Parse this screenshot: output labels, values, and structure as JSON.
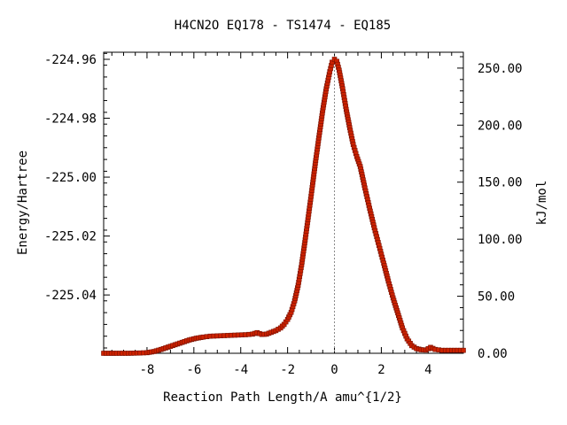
{
  "chart_data": {
    "type": "line",
    "title": "H4CN2O   EQ178 - TS1474 - EQ185",
    "xlabel": "Reaction Path Length/A amu^{1/2}",
    "ylabel": "Energy/Hartree",
    "y2label": "kJ/mol",
    "xlim": [
      -9.85,
      5.5
    ],
    "ylim": [
      -225.0598,
      -224.9576
    ],
    "y2lim": [
      0,
      263.9
    ],
    "x_ticks": [
      -8,
      -6,
      -4,
      -2,
      0,
      2,
      4
    ],
    "x_tick_labels": [
      "-8",
      "-6",
      "-4",
      "-2",
      "0",
      "2",
      "4"
    ],
    "y_ticks": [
      -224.96,
      -224.98,
      -225.0,
      -225.02,
      -225.04
    ],
    "y_tick_labels": [
      "-224.96",
      "-224.98",
      "-225.00",
      "-225.02",
      "-225.04"
    ],
    "y2_ticks": [
      0,
      50,
      100,
      150,
      200,
      250
    ],
    "y2_tick_labels": [
      "0.00",
      "50.00",
      "100.00",
      "150.00",
      "200.00",
      "250.00"
    ],
    "ts_marker_x": 0,
    "grid": false,
    "colors": {
      "line": "#00a000",
      "marker": "#cc2200",
      "marker_edge": "#7a1000",
      "ts_line": "#888888"
    },
    "series": [
      {
        "x": [
          -9.85,
          -9.3,
          -8.8,
          -8.3,
          -8.0,
          -7.7,
          -7.4,
          -7.1,
          -6.8,
          -6.5,
          -6.2,
          -5.9,
          -5.6,
          -5.3,
          -5.0,
          -4.7,
          -4.4,
          -4.1,
          -3.8,
          -3.5,
          -3.3,
          -3.1,
          -2.9,
          -2.7,
          -2.5,
          -2.3,
          -2.15,
          -2.0,
          -1.85,
          -1.7,
          -1.55,
          -1.4,
          -1.25,
          -1.1,
          -0.95,
          -0.8,
          -0.65,
          -0.5,
          -0.35,
          -0.2,
          -0.1,
          0.0,
          0.1,
          0.2,
          0.35,
          0.5,
          0.65,
          0.8,
          0.95,
          1.1,
          1.3,
          1.5,
          1.7,
          1.9,
          2.1,
          2.3,
          2.5,
          2.7,
          2.9,
          3.1,
          3.3,
          3.5,
          3.7,
          3.9,
          4.1,
          4.3,
          4.6,
          5.0,
          5.5
        ],
        "y": [
          -225.0598,
          -225.0598,
          -225.0598,
          -225.0597,
          -225.0596,
          -225.0592,
          -225.0585,
          -225.0577,
          -225.0569,
          -225.0561,
          -225.0553,
          -225.0547,
          -225.0543,
          -225.054,
          -225.0539,
          -225.0538,
          -225.0537,
          -225.0536,
          -225.0535,
          -225.0533,
          -225.0528,
          -225.0534,
          -225.0533,
          -225.0527,
          -225.0521,
          -225.0512,
          -225.05,
          -225.0483,
          -225.0459,
          -225.042,
          -225.0367,
          -225.0297,
          -225.0213,
          -225.0125,
          -225.0035,
          -224.9943,
          -224.9857,
          -224.9773,
          -224.97,
          -224.9642,
          -224.961,
          -224.96,
          -224.9607,
          -224.9637,
          -224.97,
          -224.977,
          -224.9832,
          -224.9889,
          -224.993,
          -224.9964,
          -225.0037,
          -225.0106,
          -225.0172,
          -225.0232,
          -225.0292,
          -225.0353,
          -225.041,
          -225.0461,
          -225.0512,
          -225.0549,
          -225.0572,
          -225.0582,
          -225.0586,
          -225.0587,
          -225.0578,
          -225.0585,
          -225.0588,
          -225.0588,
          -225.0588
        ]
      }
    ]
  }
}
